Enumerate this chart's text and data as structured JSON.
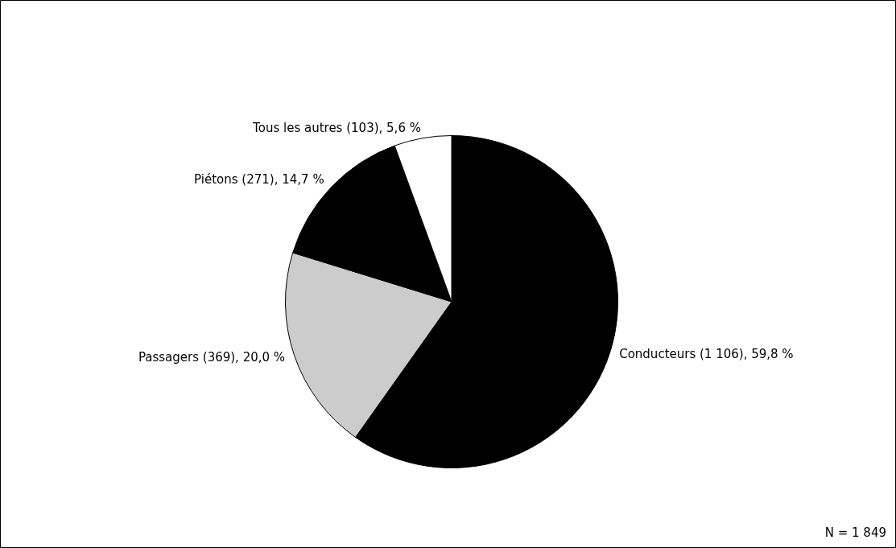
{
  "chart_data": {
    "type": "pie",
    "categories": [
      "Conducteurs (1 106), 59,8 %",
      "Passagers (369), 20,0 %",
      "Piétons (271), 14,7 %",
      "Tous les autres (103), 5,6 %"
    ],
    "values": [
      1106,
      369,
      271,
      103
    ],
    "colors": [
      "#000000",
      "#cccccc",
      "#000000",
      "#ffffff"
    ],
    "legend": false,
    "annotations": [
      "N = 1 849"
    ]
  }
}
